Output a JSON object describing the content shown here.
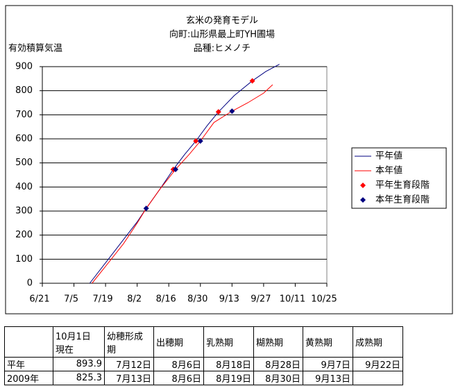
{
  "chart_data": {
    "type": "line",
    "title": [
      "玄米の発育モデル",
      "向町:山形県最上町YH圃場",
      "品種:ヒメノチ"
    ],
    "y_label": "有効積算気温",
    "xlim": [
      "6/21",
      "10/25"
    ],
    "xticks": [
      "6/21",
      "7/5",
      "7/19",
      "8/2",
      "8/16",
      "8/30",
      "9/13",
      "9/27",
      "10/11",
      "10/25"
    ],
    "ylim": [
      0,
      900
    ],
    "yticks": [
      0,
      100,
      200,
      300,
      400,
      500,
      600,
      700,
      800,
      900
    ],
    "grid": true,
    "legend": "right",
    "series": [
      {
        "name": "平年値",
        "type": "line",
        "color": "#000080",
        "x": [
          "7/12",
          "7/19",
          "7/26",
          "8/2",
          "8/6",
          "8/12",
          "8/18",
          "8/23",
          "8/28",
          "9/2",
          "9/7",
          "9/14",
          "9/22",
          "9/28",
          "10/4"
        ],
        "values": [
          0,
          85,
          170,
          255,
          311,
          390,
          473,
          535,
          591,
          655,
          712,
          780,
          841,
          880,
          910
        ]
      },
      {
        "name": "本年値",
        "type": "line",
        "color": "#ff0000",
        "x": [
          "7/13",
          "7/20",
          "7/27",
          "8/2",
          "8/6",
          "8/12",
          "8/19",
          "8/25",
          "8/30",
          "9/5",
          "9/13",
          "9/20",
          "9/27",
          "10/1"
        ],
        "values": [
          0,
          82,
          165,
          250,
          311,
          390,
          473,
          535,
          591,
          668,
          715,
          750,
          790,
          825
        ]
      },
      {
        "name": "平年生育段階",
        "type": "scatter",
        "color": "#ff0000",
        "x": [
          "8/18",
          "8/28",
          "9/7",
          "9/22"
        ],
        "values": [
          473,
          591,
          712,
          841
        ]
      },
      {
        "name": "本年生育段階",
        "type": "scatter",
        "color": "#000080",
        "x": [
          "8/6",
          "8/19",
          "8/30",
          "9/13"
        ],
        "values": [
          311,
          473,
          591,
          715
        ]
      }
    ]
  },
  "table": {
    "header": [
      null,
      "10月1日\n現在",
      "幼穂形成期",
      "出穂期",
      "乳熟期",
      "糊熟期",
      "黄熟期",
      "成熟期"
    ],
    "rows": [
      [
        "平年",
        893.9,
        "7月12日",
        "8月6日",
        "8月18日",
        "8月28日",
        "9月7日",
        "9月22日"
      ],
      [
        "2009年",
        825.3,
        "7月13日",
        "8月6日",
        "8月19日",
        "8月30日",
        "9月13日"
      ]
    ]
  }
}
